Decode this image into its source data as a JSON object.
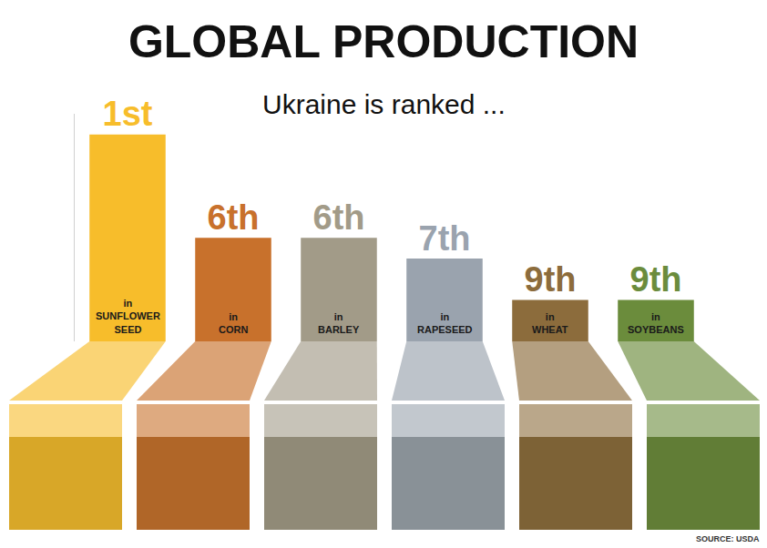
{
  "chart_data": {
    "type": "bar",
    "title": "GLOBAL PRODUCTION",
    "subtitle": "Ukraine is ranked ...",
    "label_prefix": "in",
    "categories": [
      "SUNFLOWER SEED",
      "CORN",
      "BARLEY",
      "RAPESEED",
      "WHEAT",
      "SOYBEANS"
    ],
    "values": [
      1,
      6,
      6,
      7,
      9,
      9
    ],
    "value_labels": [
      "1st",
      "6th",
      "6th",
      "7th",
      "9th",
      "9th"
    ],
    "colors": [
      "#f7bd2b",
      "#c8712c",
      "#a29b88",
      "#9aa3ae",
      "#8c6c3c",
      "#6b8c3c"
    ],
    "ylim": [
      11,
      0
    ],
    "data_labels": true,
    "tick_labels": false,
    "grid": false,
    "source": "SOURCE: USDA"
  }
}
